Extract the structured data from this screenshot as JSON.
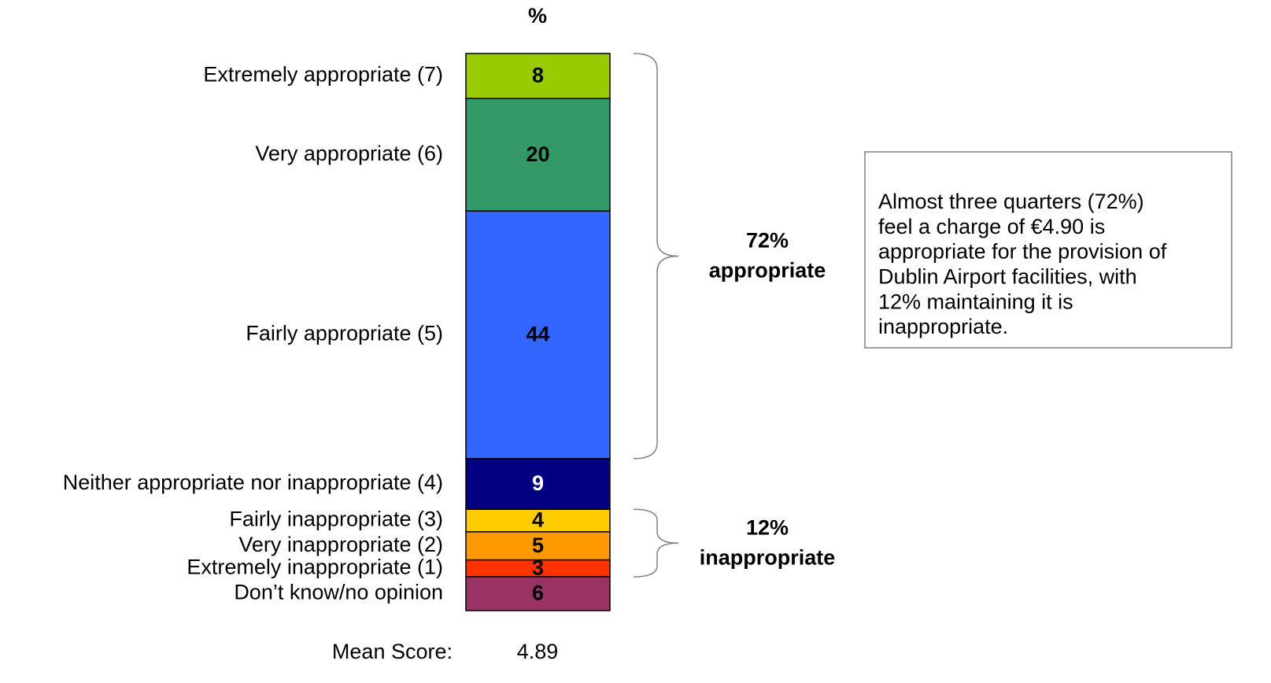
{
  "chart_data": {
    "type": "stacked_bar",
    "title": "%",
    "series": [
      {
        "name": "Extremely appropriate (7)",
        "color": "#99cc00",
        "label_color": "#000000",
        "values": [
          8
        ]
      },
      {
        "name": "Very appropriate (6)",
        "color": "#339966",
        "label_color": "#000000",
        "values": [
          20
        ]
      },
      {
        "name": "Fairly appropriate (5)",
        "color": "#3366ff",
        "label_color": "#000000",
        "values": [
          44
        ]
      },
      {
        "name": "Neither appropriate nor inappropriate (4)",
        "color": "#000080",
        "label_color": "#ffffff",
        "values": [
          9
        ]
      },
      {
        "name": "Fairly inappropriate (3)",
        "color": "#ffcc00",
        "label_color": "#000000",
        "values": [
          4
        ]
      },
      {
        "name": "Very inappropriate (2)",
        "color": "#ff9900",
        "label_color": "#000000",
        "values": [
          5
        ]
      },
      {
        "name": "Extremely inappropriate (1)",
        "color": "#ff3300",
        "label_color": "#000000",
        "values": [
          3
        ]
      },
      {
        "name": "Don’t know/no opinion",
        "color": "#993366",
        "label_color": "#000000",
        "values": [
          6
        ]
      }
    ],
    "brackets": [
      {
        "label": [
          "72%",
          "appropriate"
        ]
      },
      {
        "label": [
          "12%",
          "inappropriate"
        ]
      }
    ],
    "note": [
      "Almost three quarters (72%)",
      "feel a charge of €4.90 is",
      "appropriate for the provision of",
      "Dublin Airport facilities, with",
      "12% maintaining it is",
      "inappropriate."
    ],
    "mean_score_label": "Mean Score:",
    "mean_score": 4.89
  }
}
